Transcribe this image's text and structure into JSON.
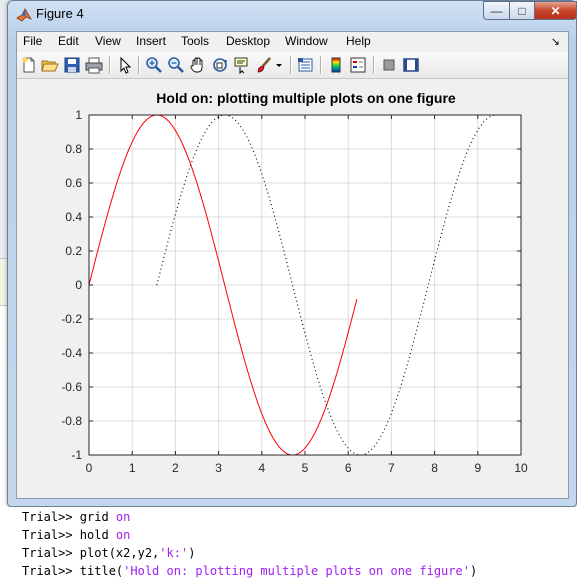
{
  "window": {
    "title": "Figure 4",
    "controls": {
      "minimize": "—",
      "maximize": "□",
      "close": "✕"
    }
  },
  "menu": {
    "items": [
      "File",
      "Edit",
      "View",
      "Insert",
      "Tools",
      "Desktop",
      "Window",
      "Help"
    ],
    "overflow_arrow": "↘"
  },
  "toolbar": {
    "buttons": [
      "new-figure",
      "open-file",
      "save-figure",
      "print-figure",
      "edit-plot",
      "zoom-in",
      "zoom-out",
      "pan",
      "rotate-3d",
      "data-cursor",
      "brush",
      "brush-menu",
      "link-plot",
      "insert-colorbar",
      "insert-legend",
      "hide-plot-tools",
      "show-plot-tools"
    ]
  },
  "chart_data": {
    "type": "line",
    "title": "Hold on: plotting multiple plots on one figure",
    "xlabel": "",
    "ylabel": "",
    "xlim": [
      0,
      10
    ],
    "ylim": [
      -1,
      1
    ],
    "xticks": [
      0,
      1,
      2,
      3,
      4,
      5,
      6,
      7,
      8,
      9,
      10
    ],
    "yticks": [
      1,
      0.8,
      0.6,
      0.4,
      0.2,
      0,
      -0.2,
      -0.4,
      -0.6,
      -0.8,
      -1
    ],
    "grid": true,
    "series": [
      {
        "function": "sin(x)",
        "x_range": [
          0,
          6.2
        ],
        "style": "solid",
        "color": "#ff0000"
      },
      {
        "function": "sin(x - 1.5708)",
        "x_range": [
          1.57,
          9.4
        ],
        "style": "dotted",
        "color": "#000000"
      }
    ]
  },
  "console": {
    "prompt": "Trial>> ",
    "lines": [
      {
        "cmd": "grid ",
        "arg": "on",
        "arg_type": "kw",
        "tail": ""
      },
      {
        "cmd": "hold ",
        "arg": "on",
        "arg_type": "kw",
        "tail": ""
      },
      {
        "cmd": "plot(x2,y2,",
        "arg": "'k:'",
        "arg_type": "str",
        "tail": ")"
      },
      {
        "cmd": "title(",
        "arg": "'Hold on: plotting multiple plots on one figure'",
        "arg_type": "str",
        "tail": ")"
      }
    ]
  }
}
